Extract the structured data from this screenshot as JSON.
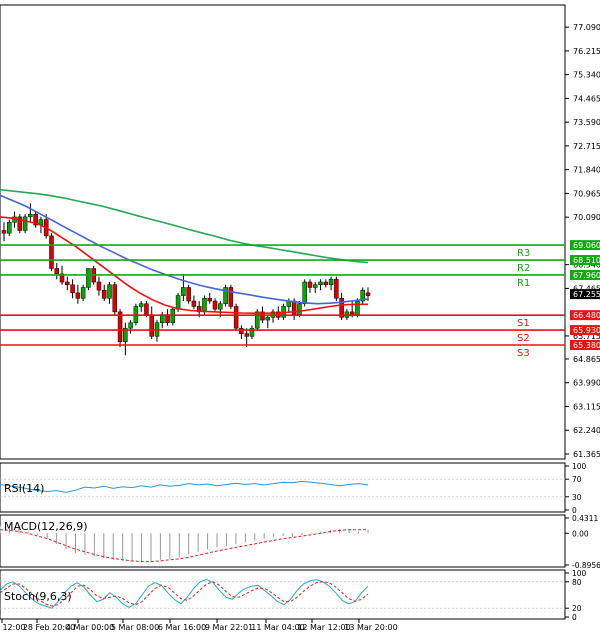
{
  "chart_data": {
    "type": "candlestick",
    "main": {
      "y_ticks": [
        "77.090",
        "76.215",
        "75.340",
        "74.465",
        "73.590",
        "72.715",
        "71.840",
        "70.965",
        "70.090",
        "68.340",
        "67.465",
        "65.715",
        "64.865",
        "63.990",
        "63.115",
        "62.240",
        "61.365"
      ],
      "ylim": [
        61.365,
        77.5
      ],
      "current_price": "67.255",
      "colors": {
        "up": "#00aa00",
        "down": "#dd0000",
        "ma_fast": "#ee1111",
        "ma_mid": "#4466dd",
        "ma_slow": "#22aa55",
        "support": "#ee1111",
        "resistance": "#11aa11"
      },
      "levels": [
        {
          "id": "R3",
          "label": "R3",
          "value": 69.06,
          "text": "69.060",
          "kind": "resistance"
        },
        {
          "id": "R2",
          "label": "R2",
          "value": 68.51,
          "text": "68.510",
          "kind": "resistance"
        },
        {
          "id": "R1",
          "label": "R1",
          "value": 67.96,
          "text": "67.960",
          "kind": "resistance"
        },
        {
          "id": "S1",
          "label": "S1",
          "value": 66.48,
          "text": "66.480",
          "kind": "support"
        },
        {
          "id": "S2",
          "label": "S2",
          "value": 65.93,
          "text": "65.930",
          "kind": "support"
        },
        {
          "id": "S3",
          "label": "S3",
          "value": 65.38,
          "text": "65.380",
          "kind": "support"
        }
      ],
      "candles": [
        [
          69.6,
          69.9,
          69.2,
          69.5
        ],
        [
          69.5,
          70.0,
          69.4,
          69.9
        ],
        [
          69.9,
          70.3,
          69.7,
          70.1
        ],
        [
          70.1,
          70.2,
          69.5,
          69.6
        ],
        [
          69.6,
          70.2,
          69.5,
          70.1
        ],
        [
          70.1,
          70.6,
          69.9,
          70.2
        ],
        [
          70.2,
          70.3,
          69.7,
          69.8
        ],
        [
          69.8,
          70.1,
          69.5,
          70.0
        ],
        [
          70.0,
          70.2,
          69.3,
          69.4
        ],
        [
          69.4,
          69.5,
          68.1,
          68.2
        ],
        [
          68.2,
          68.4,
          67.8,
          68.0
        ],
        [
          68.0,
          68.3,
          67.6,
          67.7
        ],
        [
          67.7,
          67.9,
          67.4,
          67.6
        ],
        [
          67.6,
          67.8,
          67.1,
          67.3
        ],
        [
          67.3,
          67.6,
          66.9,
          67.1
        ],
        [
          67.1,
          67.6,
          67.0,
          67.5
        ],
        [
          67.5,
          68.2,
          67.4,
          68.2
        ],
        [
          68.2,
          68.3,
          67.6,
          67.7
        ],
        [
          67.7,
          67.9,
          67.2,
          67.4
        ],
        [
          67.4,
          67.6,
          67.0,
          67.1
        ],
        [
          67.1,
          67.7,
          66.9,
          67.6
        ],
        [
          67.6,
          67.7,
          66.5,
          66.6
        ],
        [
          66.6,
          66.7,
          65.3,
          65.5
        ],
        [
          65.5,
          66.2,
          65.0,
          66.0
        ],
        [
          66.0,
          66.3,
          65.8,
          66.2
        ],
        [
          66.2,
          66.9,
          66.1,
          66.8
        ],
        [
          66.8,
          67.0,
          66.6,
          66.9
        ],
        [
          66.9,
          67.0,
          66.4,
          66.5
        ],
        [
          66.5,
          66.8,
          65.6,
          65.7
        ],
        [
          65.7,
          66.3,
          65.5,
          66.2
        ],
        [
          66.2,
          66.6,
          66.0,
          66.5
        ],
        [
          66.5,
          66.7,
          66.1,
          66.2
        ],
        [
          66.2,
          66.8,
          66.1,
          66.7
        ],
        [
          66.7,
          67.3,
          66.6,
          67.2
        ],
        [
          67.2,
          68.0,
          67.0,
          67.5
        ],
        [
          67.5,
          67.6,
          66.9,
          67.0
        ],
        [
          67.0,
          67.2,
          66.7,
          66.8
        ],
        [
          66.8,
          67.0,
          66.4,
          66.6
        ],
        [
          66.6,
          67.2,
          66.5,
          67.1
        ],
        [
          67.1,
          67.3,
          66.9,
          67.0
        ],
        [
          67.0,
          67.1,
          66.6,
          66.7
        ],
        [
          66.7,
          67.0,
          66.4,
          66.9
        ],
        [
          66.9,
          67.6,
          66.8,
          67.5
        ],
        [
          67.5,
          67.6,
          66.7,
          66.8
        ],
        [
          66.8,
          66.9,
          65.9,
          66.0
        ],
        [
          66.0,
          66.1,
          65.6,
          65.8
        ],
        [
          65.8,
          66.0,
          65.3,
          65.7
        ],
        [
          65.7,
          66.1,
          65.6,
          66.0
        ],
        [
          66.0,
          66.7,
          65.9,
          66.6
        ],
        [
          66.6,
          66.8,
          66.2,
          66.3
        ],
        [
          66.3,
          66.5,
          66.0,
          66.4
        ],
        [
          66.4,
          66.7,
          66.2,
          66.6
        ],
        [
          66.6,
          66.8,
          66.3,
          66.4
        ],
        [
          66.4,
          66.9,
          66.3,
          66.8
        ],
        [
          66.8,
          67.1,
          66.6,
          67.0
        ],
        [
          67.0,
          67.1,
          66.3,
          66.5
        ],
        [
          66.5,
          67.0,
          66.4,
          66.9
        ],
        [
          66.9,
          67.8,
          66.8,
          67.7
        ],
        [
          67.7,
          67.8,
          67.3,
          67.5
        ],
        [
          67.5,
          67.7,
          67.3,
          67.6
        ],
        [
          67.6,
          67.8,
          67.4,
          67.7
        ],
        [
          67.7,
          67.8,
          67.5,
          67.6
        ],
        [
          67.6,
          67.9,
          67.4,
          67.8
        ],
        [
          67.8,
          67.9,
          67.0,
          67.1
        ],
        [
          67.1,
          67.3,
          66.3,
          66.4
        ],
        [
          66.4,
          66.7,
          66.3,
          66.6
        ],
        [
          66.6,
          67.0,
          66.4,
          66.5
        ],
        [
          66.5,
          67.1,
          66.4,
          67.0
        ],
        [
          67.0,
          67.5,
          66.9,
          67.4
        ],
        [
          67.3,
          67.5,
          67.0,
          67.2
        ]
      ],
      "ma_fast": [
        70.1,
        70.05,
        69.95,
        69.85,
        69.6,
        69.3,
        69.0,
        68.65,
        68.3,
        67.95,
        67.6,
        67.3,
        67.05,
        66.85,
        66.72,
        66.65,
        66.62,
        66.6,
        66.58,
        66.56,
        66.55,
        66.55,
        66.56,
        66.6,
        66.65,
        66.72,
        66.8,
        66.86,
        66.88,
        66.88
      ],
      "ma_mid": [
        70.9,
        70.7,
        70.5,
        70.25,
        70.0,
        69.75,
        69.5,
        69.25,
        69.0,
        68.78,
        68.55,
        68.35,
        68.15,
        67.98,
        67.82,
        67.68,
        67.55,
        67.45,
        67.36,
        67.28,
        67.2,
        67.12,
        67.05,
        66.98,
        66.93,
        66.9,
        66.92,
        66.96,
        67.02,
        67.08
      ],
      "ma_slow": [
        71.1,
        71.05,
        71.0,
        70.95,
        70.88,
        70.8,
        70.7,
        70.6,
        70.5,
        70.38,
        70.25,
        70.12,
        70.0,
        69.88,
        69.75,
        69.62,
        69.5,
        69.38,
        69.25,
        69.14,
        69.05,
        68.98,
        68.9,
        68.82,
        68.74,
        68.66,
        68.58,
        68.52,
        68.46,
        68.42
      ]
    },
    "x_labels": [
      "12:00",
      "28 Feb 20:00",
      "4 Mar 00:00",
      "5 Mar 08:00",
      "6 Mar 16:00",
      "9 Mar 22:01",
      "11 Mar 04:00",
      "12 Mar 12:00",
      "13 Mar 20:00"
    ],
    "rsi": {
      "label": "RSI(14)",
      "y_ticks": [
        "100",
        "70",
        "30",
        "0"
      ],
      "ylim": [
        0,
        100
      ],
      "values": [
        58,
        55,
        52,
        48,
        44,
        42,
        44,
        40,
        45,
        52,
        50,
        54,
        49,
        53,
        51,
        55,
        52,
        57,
        54,
        56,
        60,
        57,
        59,
        55,
        58,
        61,
        58,
        60,
        57,
        60,
        63,
        62,
        65,
        63,
        61,
        58,
        55,
        58,
        60,
        57
      ]
    },
    "macd": {
      "label": "MACD(12,26,9)",
      "y_ticks": [
        "0.4311",
        "0.00",
        "-0.8956"
      ],
      "ylim": [
        -0.8956,
        0.4311
      ],
      "histogram": [
        0.2,
        0.25,
        0.15,
        0.05,
        -0.05,
        -0.15,
        -0.3,
        -0.45,
        -0.55,
        -0.6,
        -0.65,
        -0.7,
        -0.75,
        -0.78,
        -0.8,
        -0.82,
        -0.8,
        -0.75,
        -0.72,
        -0.68,
        -0.6,
        -0.52,
        -0.45,
        -0.4,
        -0.35,
        -0.3,
        -0.25,
        -0.2,
        -0.15,
        -0.1,
        -0.08,
        -0.1,
        -0.05,
        0.0,
        0.05,
        0.1,
        0.12,
        0.08,
        0.05,
        0.1
      ],
      "signal": [
        0.1,
        0.08,
        0.05,
        0.0,
        -0.08,
        -0.15,
        -0.25,
        -0.35,
        -0.45,
        -0.52,
        -0.6,
        -0.66,
        -0.71,
        -0.75,
        -0.78,
        -0.8,
        -0.8,
        -0.78,
        -0.75,
        -0.72,
        -0.68,
        -0.62,
        -0.56,
        -0.5,
        -0.45,
        -0.4,
        -0.35,
        -0.3,
        -0.25,
        -0.2,
        -0.15,
        -0.12,
        -0.08,
        -0.04,
        0.0,
        0.05,
        0.08,
        0.1,
        0.1,
        0.1
      ]
    },
    "stoch": {
      "label": "Stoch(9,6,3)",
      "y_ticks": [
        "100",
        "80",
        "20",
        "0"
      ],
      "ylim": [
        0,
        100
      ],
      "main": [
        60,
        75,
        80,
        70,
        55,
        40,
        30,
        25,
        20,
        35,
        55,
        70,
        78,
        68,
        50,
        35,
        40,
        55,
        45,
        30,
        22,
        30,
        50,
        70,
        78,
        72,
        55,
        40,
        30,
        45,
        65,
        80,
        85,
        78,
        60,
        45,
        40,
        55,
        65,
        70,
        72,
        60,
        48,
        35,
        28,
        40,
        60,
        75,
        82,
        85,
        80,
        70,
        55,
        38,
        30,
        35,
        55,
        70
      ],
      "signal": [
        55,
        65,
        75,
        75,
        65,
        52,
        40,
        30,
        25,
        28,
        40,
        55,
        70,
        72,
        62,
        48,
        42,
        45,
        48,
        42,
        32,
        28,
        35,
        50,
        65,
        72,
        68,
        55,
        42,
        38,
        48,
        62,
        75,
        80,
        72,
        58,
        46,
        45,
        52,
        60,
        66,
        65,
        56,
        45,
        35,
        35,
        45,
        58,
        70,
        78,
        80,
        78,
        68,
        55,
        42,
        36,
        40,
        52
      ]
    }
  }
}
